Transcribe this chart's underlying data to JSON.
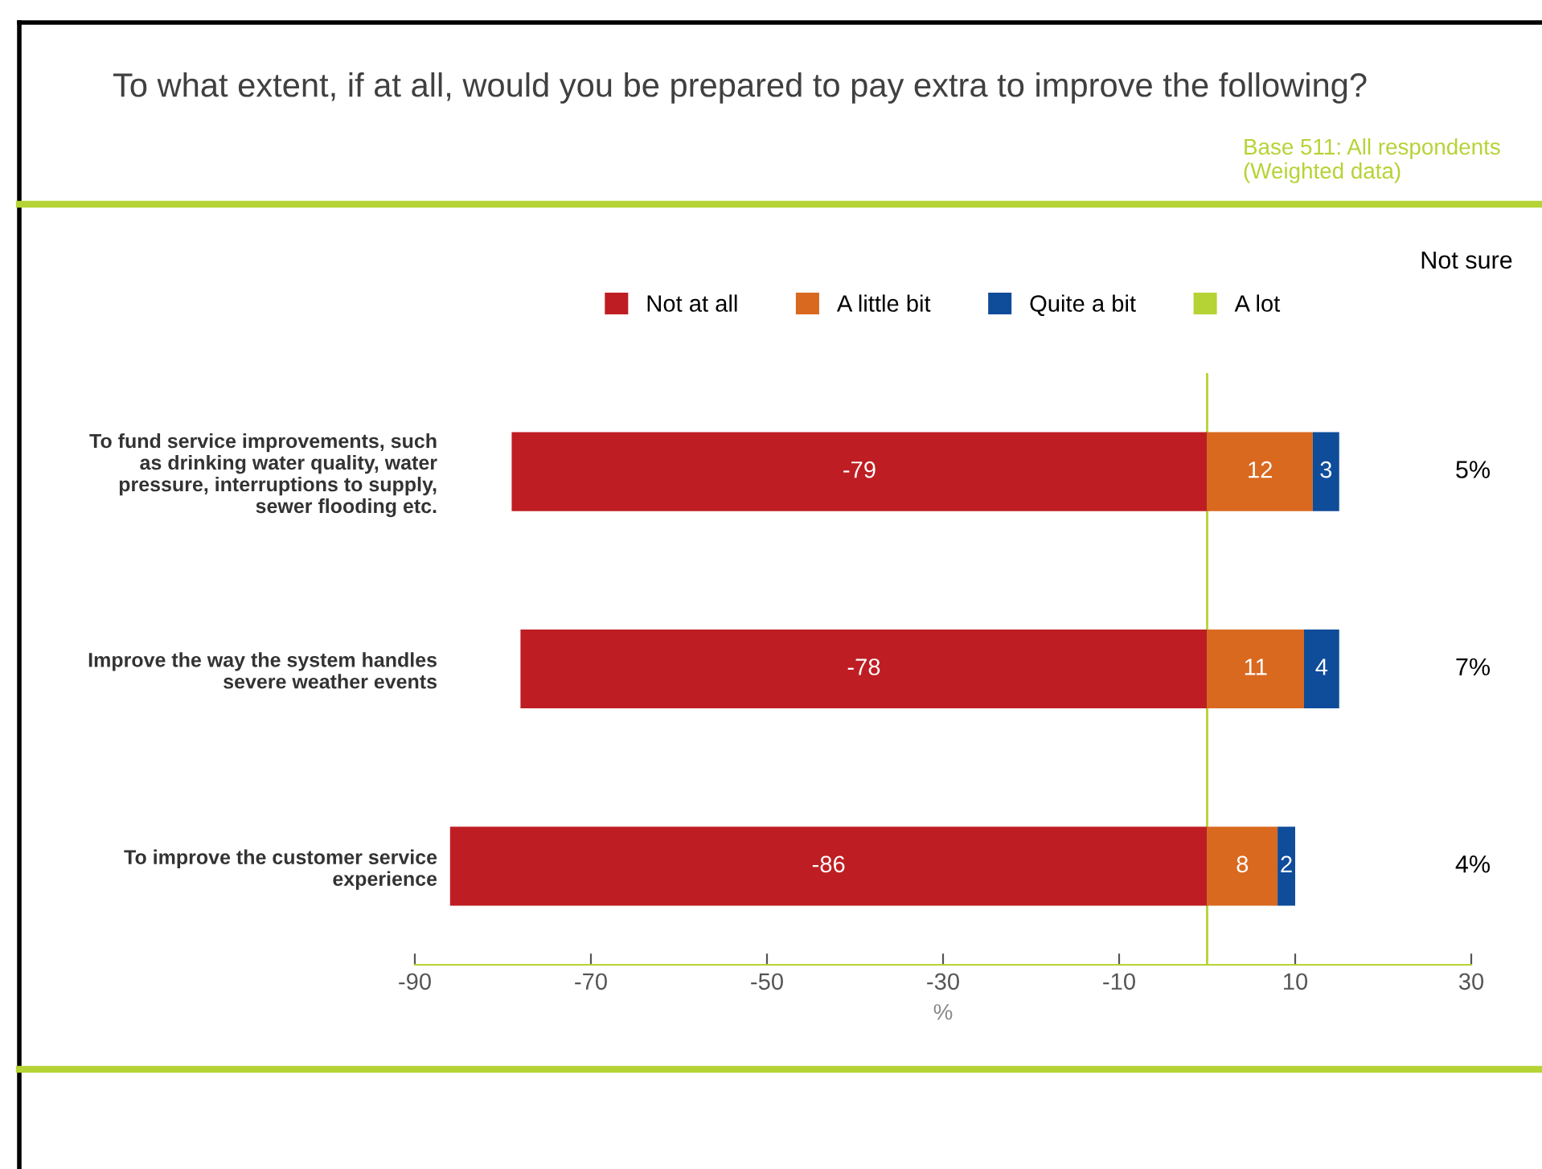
{
  "chart_data": {
    "type": "bar",
    "orientation": "horizontal",
    "stacked": true,
    "title": "To what extent, if at all, would you be prepared to pay extra to improve the following?",
    "categories": [
      "To fund service improvements, such\nas drinking water quality, water\npressure, interruptions to supply,\nsewer flooding etc.",
      "Improve the way the system handles\nsevere weather events",
      "To improve the customer service\nexperience"
    ],
    "series": [
      {
        "name": "Not at all",
        "color": "#be1e23",
        "values": [
          -79,
          -78,
          -86
        ],
        "value_labels": [
          "-79",
          "-78",
          "-86"
        ]
      },
      {
        "name": "A little bit",
        "color": "#d9691f",
        "values": [
          12,
          11,
          8
        ],
        "value_labels": [
          "12",
          "11",
          "8"
        ]
      },
      {
        "name": "Quite a bit",
        "color": "#0f4c9a",
        "values": [
          3,
          4,
          2
        ],
        "value_labels": [
          "3",
          "4",
          "2"
        ]
      },
      {
        "name": "A lot",
        "color": "#b5d334",
        "values": [
          0,
          0,
          0
        ],
        "value_labels": [
          null,
          null,
          null
        ]
      }
    ],
    "xlim": [
      -90,
      30
    ],
    "xticks": [
      -90,
      -70,
      -50,
      -30,
      -10,
      10,
      30
    ],
    "xlabel": "%",
    "ref_lines": [
      {
        "axis": "x",
        "value": 0,
        "color": "#b5d334"
      }
    ],
    "grid": false,
    "legend": "top",
    "annotations": [
      "Base 511: All respondents\n(Weighted data)",
      "Not sure",
      "5%",
      "7%",
      "4%"
    ]
  }
}
